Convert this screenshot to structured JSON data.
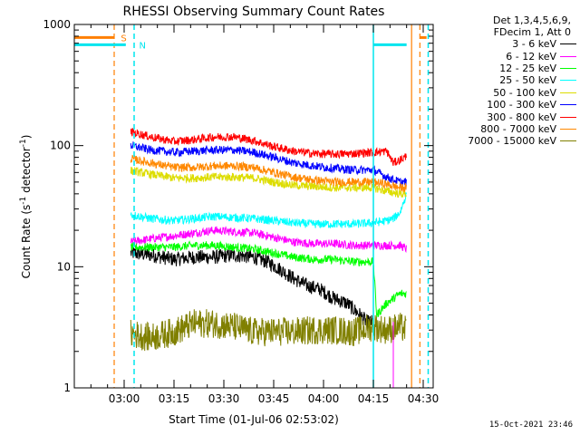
{
  "chart_data": {
    "type": "line",
    "title": "RHESSI Observing Summary Count Rates",
    "xlabel": "Start Time (01-Jul-06 02:53:02)",
    "ylabel_main": "Count Rate (s",
    "ylabel_sup1": "-1",
    "ylabel_mid": " detector",
    "ylabel_sup2": "-1",
    "ylabel_end": ")",
    "yscale": "log",
    "xlim_minutes": [
      -8,
      100
    ],
    "ylim": [
      1,
      1000
    ],
    "x_ticks": [
      {
        "m": 7,
        "label": "03:00"
      },
      {
        "m": 22,
        "label": "03:15"
      },
      {
        "m": 37,
        "label": "03:30"
      },
      {
        "m": 52,
        "label": "03:45"
      },
      {
        "m": 67,
        "label": "04:00"
      },
      {
        "m": 82,
        "label": "04:15"
      },
      {
        "m": 97,
        "label": "04:30"
      }
    ],
    "y_ticks": [
      {
        "v": 1,
        "label": "1"
      },
      {
        "v": 10,
        "label": "10"
      },
      {
        "v": 100,
        "label": "100"
      },
      {
        "v": 1000,
        "label": "1000"
      }
    ],
    "legend_header": [
      "Det 1,3,4,5,6,9,",
      "FDecim 1, Att 0"
    ],
    "series": [
      {
        "name": "3 - 6 keV",
        "color": "#000000",
        "points": [
          [
            9,
            13
          ],
          [
            15,
            12.5
          ],
          [
            22,
            11.5
          ],
          [
            28,
            12
          ],
          [
            34,
            12
          ],
          [
            40,
            12.5
          ],
          [
            46,
            12
          ],
          [
            50,
            11
          ],
          [
            54,
            9.5
          ],
          [
            58,
            8
          ],
          [
            62,
            7
          ],
          [
            66,
            6.5
          ],
          [
            70,
            5.5
          ],
          [
            74,
            5
          ],
          [
            78,
            4
          ],
          [
            80,
            3.5
          ],
          [
            82,
            3.5
          ]
        ]
      },
      {
        "name": "6 - 12 keV",
        "color": "#ff00ff",
        "points": [
          [
            9,
            16
          ],
          [
            15,
            17
          ],
          [
            22,
            18
          ],
          [
            28,
            19
          ],
          [
            34,
            20
          ],
          [
            40,
            19.5
          ],
          [
            46,
            19
          ],
          [
            52,
            17.5
          ],
          [
            58,
            16
          ],
          [
            64,
            15.5
          ],
          [
            70,
            15.5
          ],
          [
            76,
            15
          ],
          [
            82,
            15
          ],
          [
            86,
            15
          ],
          [
            90,
            15
          ],
          [
            92,
            14
          ]
        ]
      },
      {
        "name": "12 - 25 keV",
        "color": "#00ff00",
        "points": [
          [
            9,
            14.5
          ],
          [
            15,
            14.5
          ],
          [
            22,
            14.5
          ],
          [
            28,
            15
          ],
          [
            34,
            15
          ],
          [
            40,
            14.5
          ],
          [
            46,
            14
          ],
          [
            52,
            13
          ],
          [
            58,
            12
          ],
          [
            64,
            11.5
          ],
          [
            70,
            11.5
          ],
          [
            76,
            11
          ],
          [
            82,
            11
          ],
          [
            83,
            4
          ],
          [
            86,
            5
          ],
          [
            90,
            6
          ],
          [
            92,
            6
          ]
        ]
      },
      {
        "name": "25 - 50 keV",
        "color": "#00ffff",
        "points": [
          [
            9,
            27
          ],
          [
            15,
            25
          ],
          [
            22,
            24
          ],
          [
            28,
            25
          ],
          [
            34,
            26
          ],
          [
            40,
            25.5
          ],
          [
            46,
            25
          ],
          [
            52,
            24
          ],
          [
            58,
            23
          ],
          [
            64,
            22.5
          ],
          [
            70,
            22.5
          ],
          [
            76,
            22.5
          ],
          [
            82,
            23
          ],
          [
            86,
            24
          ],
          [
            88,
            25
          ],
          [
            90,
            28
          ],
          [
            92,
            40
          ]
        ]
      },
      {
        "name": "50 - 100 keV",
        "color": "#dddd00",
        "points": [
          [
            9,
            62
          ],
          [
            15,
            58
          ],
          [
            22,
            54
          ],
          [
            28,
            54
          ],
          [
            34,
            55
          ],
          [
            40,
            55
          ],
          [
            46,
            54
          ],
          [
            52,
            50
          ],
          [
            58,
            47
          ],
          [
            64,
            46
          ],
          [
            70,
            45
          ],
          [
            76,
            45
          ],
          [
            82,
            45
          ],
          [
            86,
            42
          ],
          [
            90,
            40
          ],
          [
            92,
            40
          ]
        ]
      },
      {
        "name": "100 - 300 keV",
        "color": "#0000ff",
        "points": [
          [
            9,
            100
          ],
          [
            15,
            92
          ],
          [
            22,
            88
          ],
          [
            28,
            90
          ],
          [
            34,
            92
          ],
          [
            40,
            92
          ],
          [
            46,
            88
          ],
          [
            52,
            80
          ],
          [
            58,
            72
          ],
          [
            64,
            68
          ],
          [
            70,
            65
          ],
          [
            76,
            63
          ],
          [
            82,
            63
          ],
          [
            86,
            55
          ],
          [
            90,
            50
          ],
          [
            92,
            50
          ]
        ]
      },
      {
        "name": "300 - 800 keV",
        "color": "#ff0000",
        "points": [
          [
            9,
            130
          ],
          [
            15,
            118
          ],
          [
            22,
            108
          ],
          [
            28,
            112
          ],
          [
            34,
            118
          ],
          [
            40,
            118
          ],
          [
            46,
            110
          ],
          [
            52,
            98
          ],
          [
            58,
            90
          ],
          [
            64,
            86
          ],
          [
            70,
            85
          ],
          [
            76,
            86
          ],
          [
            82,
            88
          ],
          [
            86,
            90
          ],
          [
            88,
            72
          ],
          [
            90,
            76
          ],
          [
            92,
            82
          ]
        ]
      },
      {
        "name": "800 - 7000 keV",
        "color": "#ff8800",
        "points": [
          [
            9,
            78
          ],
          [
            15,
            72
          ],
          [
            22,
            66
          ],
          [
            28,
            66
          ],
          [
            34,
            68
          ],
          [
            40,
            68
          ],
          [
            46,
            66
          ],
          [
            52,
            60
          ],
          [
            58,
            55
          ],
          [
            64,
            52
          ],
          [
            70,
            50
          ],
          [
            76,
            50
          ],
          [
            82,
            50
          ],
          [
            86,
            48
          ],
          [
            90,
            45
          ],
          [
            92,
            45
          ]
        ]
      },
      {
        "name": "7000 - 15000 keV",
        "color": "#808000",
        "points": [
          [
            9,
            2.8
          ],
          [
            15,
            2.6
          ],
          [
            22,
            2.9
          ],
          [
            28,
            3.4
          ],
          [
            34,
            3.4
          ],
          [
            40,
            3.2
          ],
          [
            46,
            2.9
          ],
          [
            52,
            2.9
          ],
          [
            58,
            2.9
          ],
          [
            64,
            3.0
          ],
          [
            70,
            3.0
          ],
          [
            76,
            2.9
          ],
          [
            82,
            3.2
          ],
          [
            86,
            3.0
          ],
          [
            90,
            3.2
          ],
          [
            92,
            3.0
          ]
        ]
      }
    ],
    "flags": {
      "s_label": "S",
      "n_label": "N",
      "cyan_level": 680,
      "orange_level": 780,
      "cyan_segments": [
        [
          -8,
          7.5
        ],
        [
          82,
          92
        ]
      ],
      "orange_segments": [
        [
          -8,
          4
        ],
        [
          96,
          98
        ]
      ]
    },
    "markers": {
      "cyan_solid": [
        82
      ],
      "cyan_dashed": [
        10,
        98.5
      ],
      "orange_dashed": [
        4,
        96
      ],
      "orange_solid": [
        93.5
      ],
      "magenta_solid": [
        88
      ]
    },
    "timestamp": "15-Oct-2021 23:46"
  }
}
